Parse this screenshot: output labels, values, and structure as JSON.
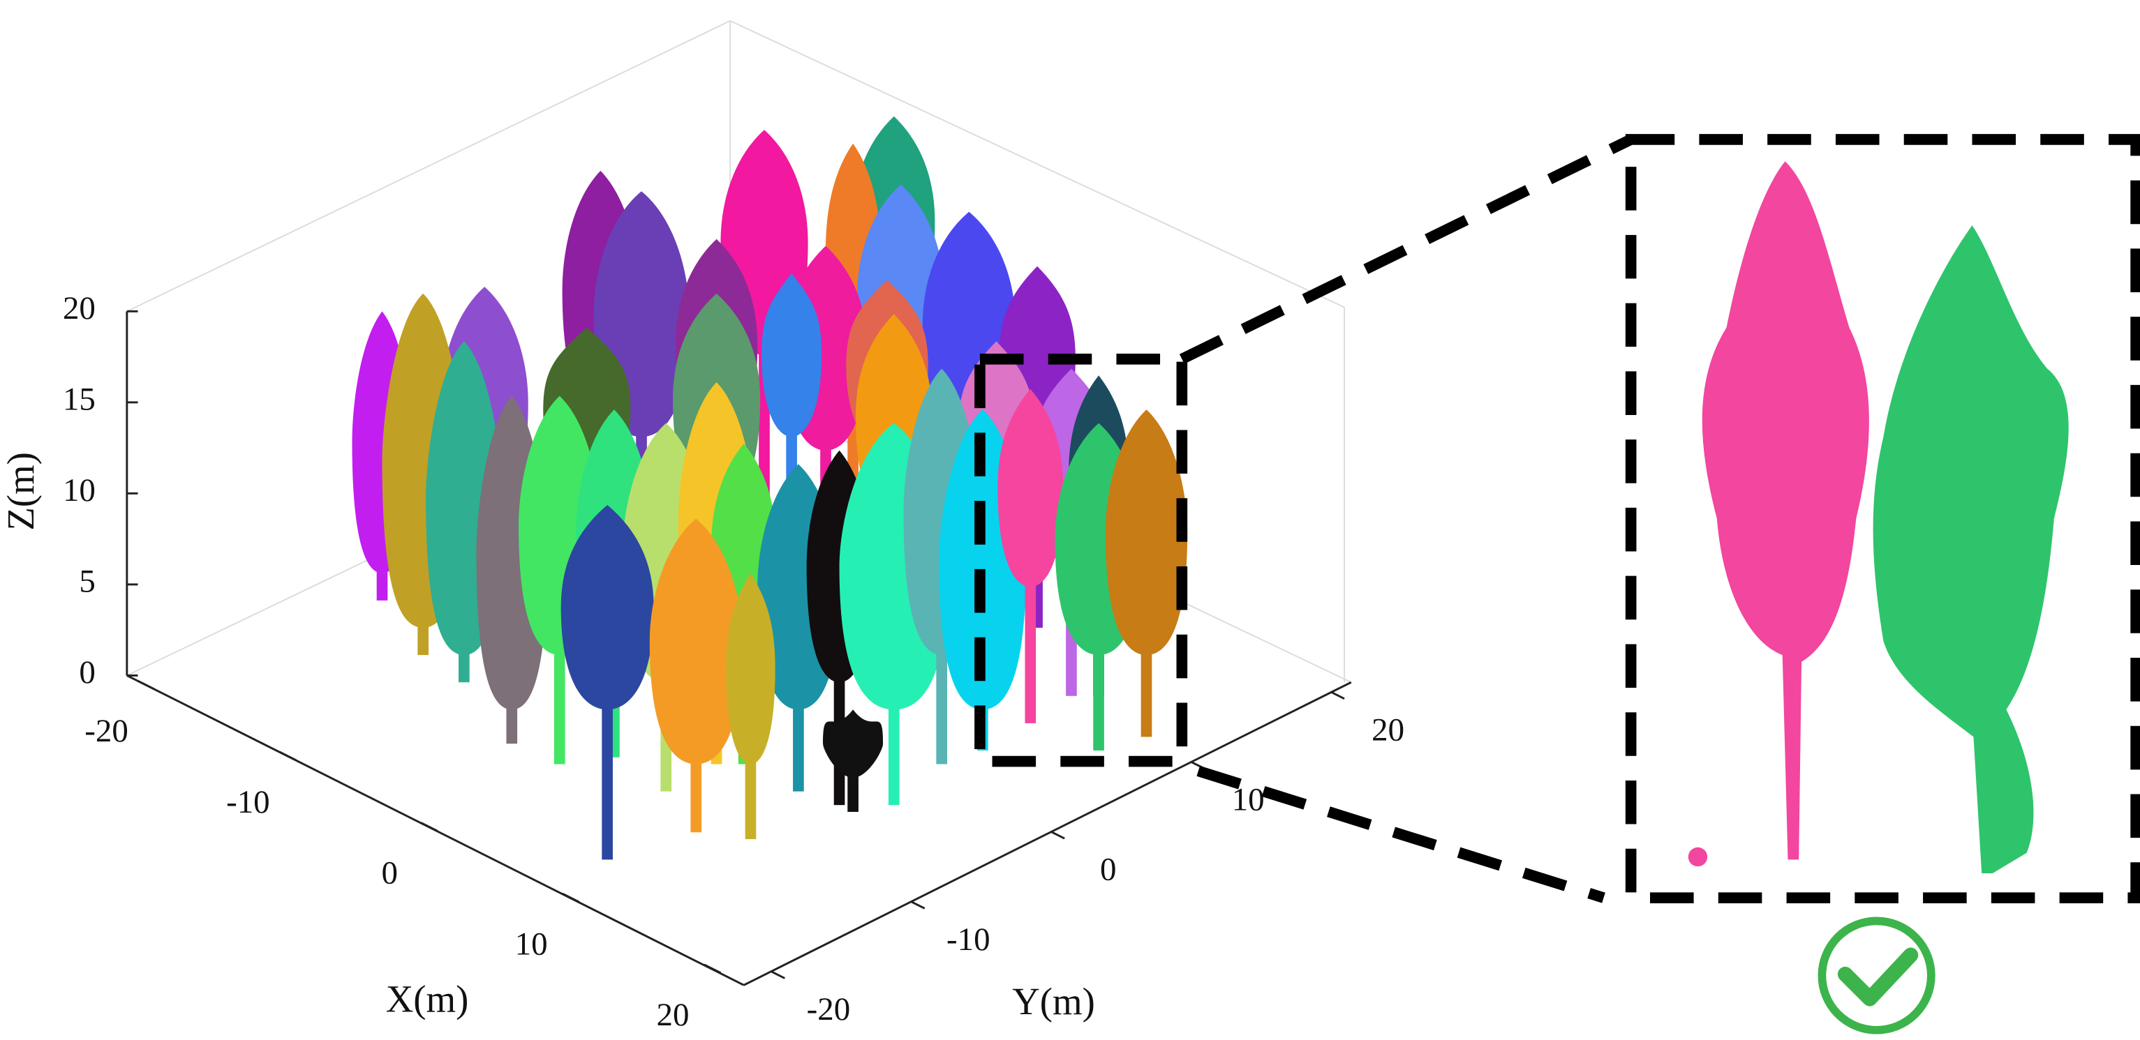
{
  "axes": {
    "x": {
      "label": "X(m)",
      "ticks": [
        -20,
        -10,
        0,
        10,
        20
      ]
    },
    "y": {
      "label": "Y(m)",
      "ticks": [
        -20,
        -10,
        0,
        10,
        20
      ]
    },
    "z": {
      "label": "Z(m)",
      "ticks": [
        0,
        5,
        10,
        15,
        20
      ]
    }
  }
}
